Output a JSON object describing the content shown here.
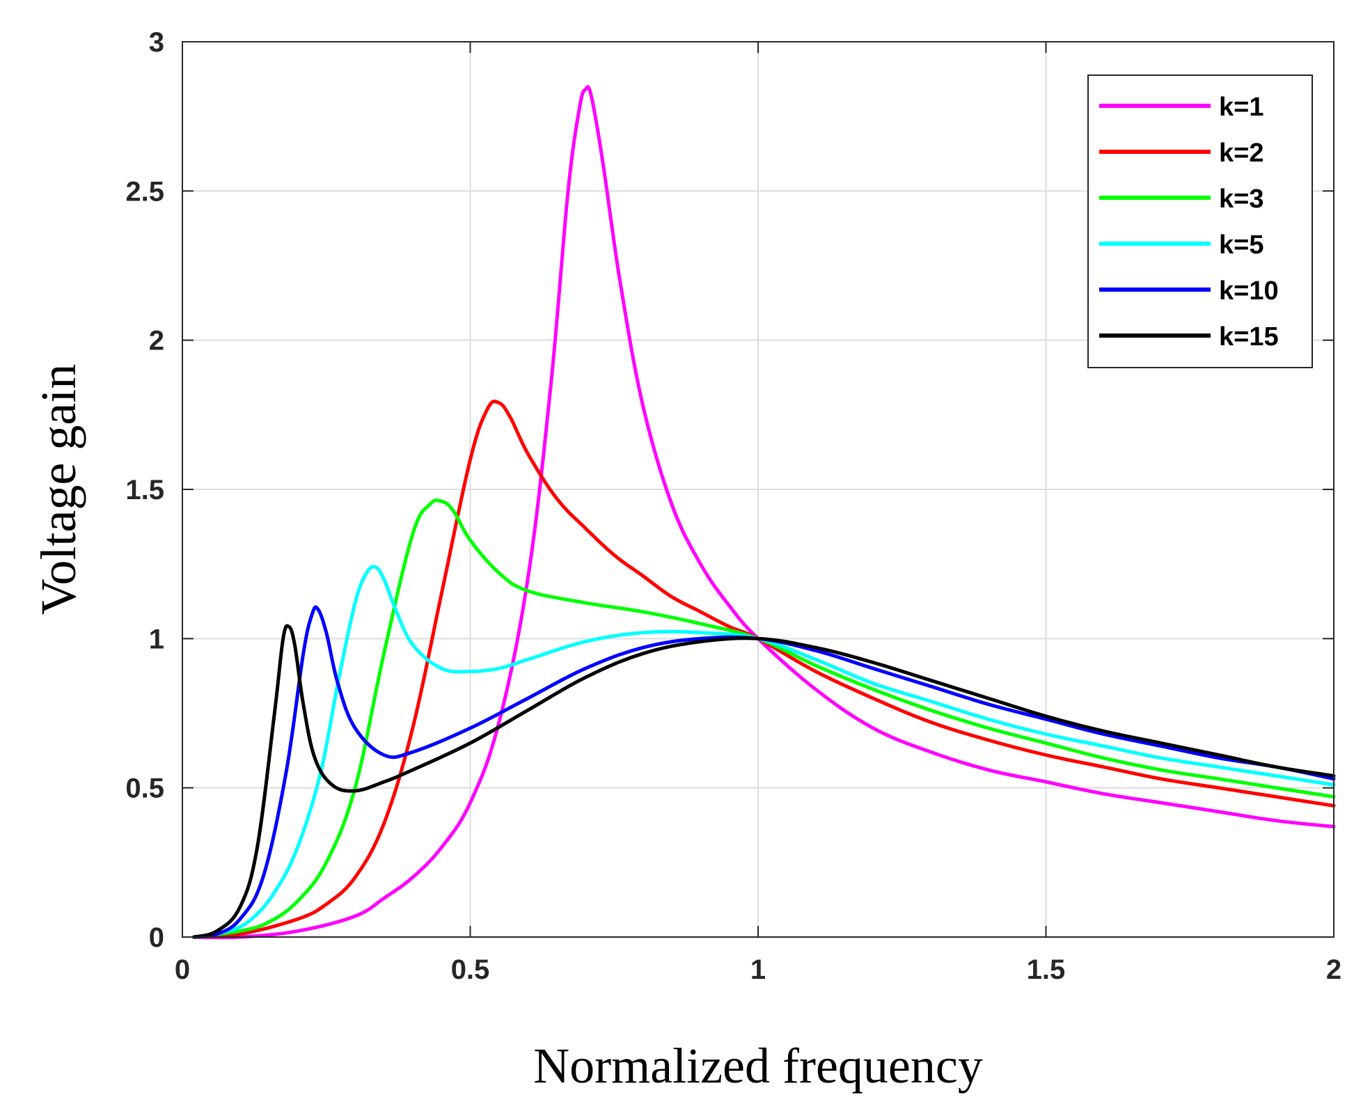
{
  "chart_data": {
    "type": "line",
    "title": "",
    "xlabel": "Normalized frequency",
    "ylabel": "Voltage gain",
    "xlim": [
      0,
      2
    ],
    "ylim": [
      0,
      3
    ],
    "xticks": [
      0,
      0.5,
      1,
      1.5,
      2
    ],
    "xtick_labels": [
      "0",
      "0.5",
      "1",
      "1.5",
      "2"
    ],
    "yticks": [
      0,
      0.5,
      1,
      1.5,
      2,
      2.5,
      3
    ],
    "ytick_labels": [
      "0",
      "0.5",
      "1",
      "1.5",
      "2",
      "2.5",
      "3"
    ],
    "grid": true,
    "legend_position": "top-right",
    "series": [
      {
        "name": "k=1",
        "label": "k=1",
        "color": "#ff00ff",
        "x": [
          0.02,
          0.1,
          0.2,
          0.3,
          0.35,
          0.4,
          0.45,
          0.5,
          0.55,
          0.6,
          0.64,
          0.67,
          0.69,
          0.7,
          0.71,
          0.73,
          0.76,
          0.8,
          0.85,
          0.9,
          0.95,
          1.0,
          1.1,
          1.2,
          1.3,
          1.4,
          1.5,
          1.6,
          1.7,
          1.8,
          1.9,
          2.0
        ],
        "values": [
          0.0,
          0.0,
          0.02,
          0.07,
          0.13,
          0.2,
          0.3,
          0.45,
          0.72,
          1.2,
          1.85,
          2.5,
          2.78,
          2.84,
          2.82,
          2.6,
          2.2,
          1.78,
          1.45,
          1.25,
          1.11,
          1.0,
          0.83,
          0.7,
          0.62,
          0.56,
          0.52,
          0.48,
          0.45,
          0.42,
          0.39,
          0.37
        ]
      },
      {
        "name": "k=2",
        "label": "k=2",
        "color": "#ff0000",
        "x": [
          0.02,
          0.1,
          0.2,
          0.25,
          0.3,
          0.35,
          0.4,
          0.45,
          0.5,
          0.53,
          0.55,
          0.57,
          0.6,
          0.65,
          0.7,
          0.75,
          0.8,
          0.85,
          0.9,
          0.95,
          1.0,
          1.1,
          1.2,
          1.3,
          1.4,
          1.5,
          1.6,
          1.7,
          1.8,
          1.9,
          2.0
        ],
        "values": [
          0.0,
          0.01,
          0.06,
          0.11,
          0.2,
          0.38,
          0.7,
          1.15,
          1.6,
          1.77,
          1.79,
          1.74,
          1.62,
          1.47,
          1.37,
          1.28,
          1.21,
          1.14,
          1.09,
          1.04,
          1.0,
          0.89,
          0.8,
          0.72,
          0.66,
          0.61,
          0.57,
          0.53,
          0.5,
          0.47,
          0.44
        ]
      },
      {
        "name": "k=3",
        "label": "k=3",
        "color": "#00ff00",
        "x": [
          0.02,
          0.1,
          0.15,
          0.2,
          0.25,
          0.3,
          0.35,
          0.4,
          0.43,
          0.45,
          0.47,
          0.5,
          0.55,
          0.6,
          0.7,
          0.8,
          0.9,
          1.0,
          1.1,
          1.2,
          1.3,
          1.4,
          1.5,
          1.6,
          1.7,
          1.8,
          1.9,
          2.0
        ],
        "values": [
          0.0,
          0.02,
          0.05,
          0.12,
          0.25,
          0.5,
          0.95,
          1.35,
          1.45,
          1.46,
          1.43,
          1.33,
          1.22,
          1.16,
          1.12,
          1.09,
          1.05,
          1.0,
          0.91,
          0.83,
          0.76,
          0.7,
          0.65,
          0.6,
          0.56,
          0.53,
          0.5,
          0.47
        ]
      },
      {
        "name": "k=5",
        "label": "k=5",
        "color": "#00ffff",
        "x": [
          0.02,
          0.08,
          0.12,
          0.16,
          0.2,
          0.24,
          0.27,
          0.3,
          0.32,
          0.335,
          0.35,
          0.37,
          0.4,
          0.45,
          0.5,
          0.55,
          0.6,
          0.7,
          0.8,
          0.9,
          1.0,
          1.1,
          1.2,
          1.3,
          1.4,
          1.5,
          1.6,
          1.7,
          1.8,
          1.9,
          2.0
        ],
        "values": [
          0.0,
          0.02,
          0.06,
          0.15,
          0.3,
          0.55,
          0.85,
          1.12,
          1.22,
          1.24,
          1.2,
          1.1,
          0.98,
          0.9,
          0.89,
          0.9,
          0.93,
          0.99,
          1.02,
          1.02,
          1.0,
          0.93,
          0.85,
          0.79,
          0.73,
          0.68,
          0.64,
          0.6,
          0.57,
          0.54,
          0.51
        ]
      },
      {
        "name": "k=10",
        "label": "k=10",
        "color": "#0000ff",
        "x": [
          0.02,
          0.06,
          0.1,
          0.14,
          0.18,
          0.21,
          0.225,
          0.235,
          0.25,
          0.27,
          0.3,
          0.35,
          0.4,
          0.5,
          0.6,
          0.7,
          0.8,
          0.9,
          1.0,
          1.1,
          1.2,
          1.3,
          1.4,
          1.5,
          1.6,
          1.7,
          1.8,
          1.9,
          2.0
        ],
        "values": [
          0.0,
          0.01,
          0.06,
          0.2,
          0.55,
          0.95,
          1.08,
          1.1,
          1.02,
          0.85,
          0.7,
          0.61,
          0.62,
          0.7,
          0.8,
          0.9,
          0.97,
          1.0,
          1.0,
          0.96,
          0.9,
          0.84,
          0.78,
          0.73,
          0.68,
          0.64,
          0.6,
          0.57,
          0.53
        ]
      },
      {
        "name": "k=15",
        "label": "k=15",
        "color": "#000000",
        "x": [
          0.02,
          0.06,
          0.1,
          0.13,
          0.16,
          0.175,
          0.185,
          0.195,
          0.21,
          0.23,
          0.26,
          0.3,
          0.35,
          0.4,
          0.5,
          0.6,
          0.7,
          0.8,
          0.9,
          1.0,
          1.1,
          1.2,
          1.3,
          1.4,
          1.5,
          1.6,
          1.7,
          1.8,
          1.9,
          2.0
        ],
        "values": [
          0.0,
          0.02,
          0.1,
          0.3,
          0.75,
          1.0,
          1.04,
          0.98,
          0.78,
          0.6,
          0.51,
          0.49,
          0.52,
          0.56,
          0.65,
          0.76,
          0.87,
          0.95,
          0.99,
          1.0,
          0.97,
          0.92,
          0.86,
          0.8,
          0.74,
          0.69,
          0.65,
          0.61,
          0.57,
          0.54
        ]
      }
    ]
  }
}
